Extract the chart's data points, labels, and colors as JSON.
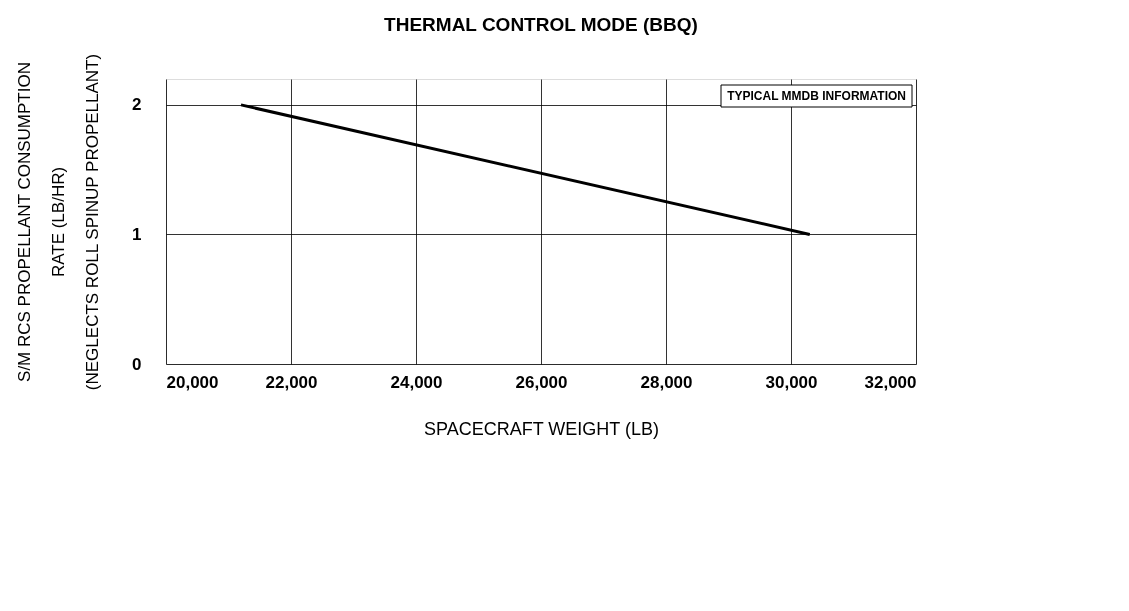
{
  "chart_data": {
    "type": "line",
    "title": "THERMAL CONTROL MODE (BBQ)",
    "xlabel": "SPACECRAFT WEIGHT (LB)",
    "ylabel": "S/M RCS PROPELLANT CONSUMPTION\nRATE (LB/HR)\n(NEGLECTS ROLL SPINUP PROPELLANT)",
    "x": [
      21200,
      30300
    ],
    "series": [
      {
        "color": "#000000",
        "values": [
          2.0,
          1.0
        ]
      }
    ],
    "xlim": [
      20000,
      32000
    ],
    "xticks": [
      {
        "value": 20000,
        "label": "20,000"
      },
      {
        "value": 22000,
        "label": "22,000"
      },
      {
        "value": 24000,
        "label": "24,000"
      },
      {
        "value": 26000,
        "label": "26,000"
      },
      {
        "value": 28000,
        "label": "28,000"
      },
      {
        "value": 30000,
        "label": "30,000"
      },
      {
        "value": 32000,
        "label": "32,000"
      }
    ],
    "ylim": [
      0,
      2.2
    ],
    "yticks": [
      0,
      1,
      2
    ],
    "grid": true,
    "line_style": "solid",
    "marker": "none",
    "annotations": [
      "TYPICAL MMDB INFORMATION"
    ]
  }
}
